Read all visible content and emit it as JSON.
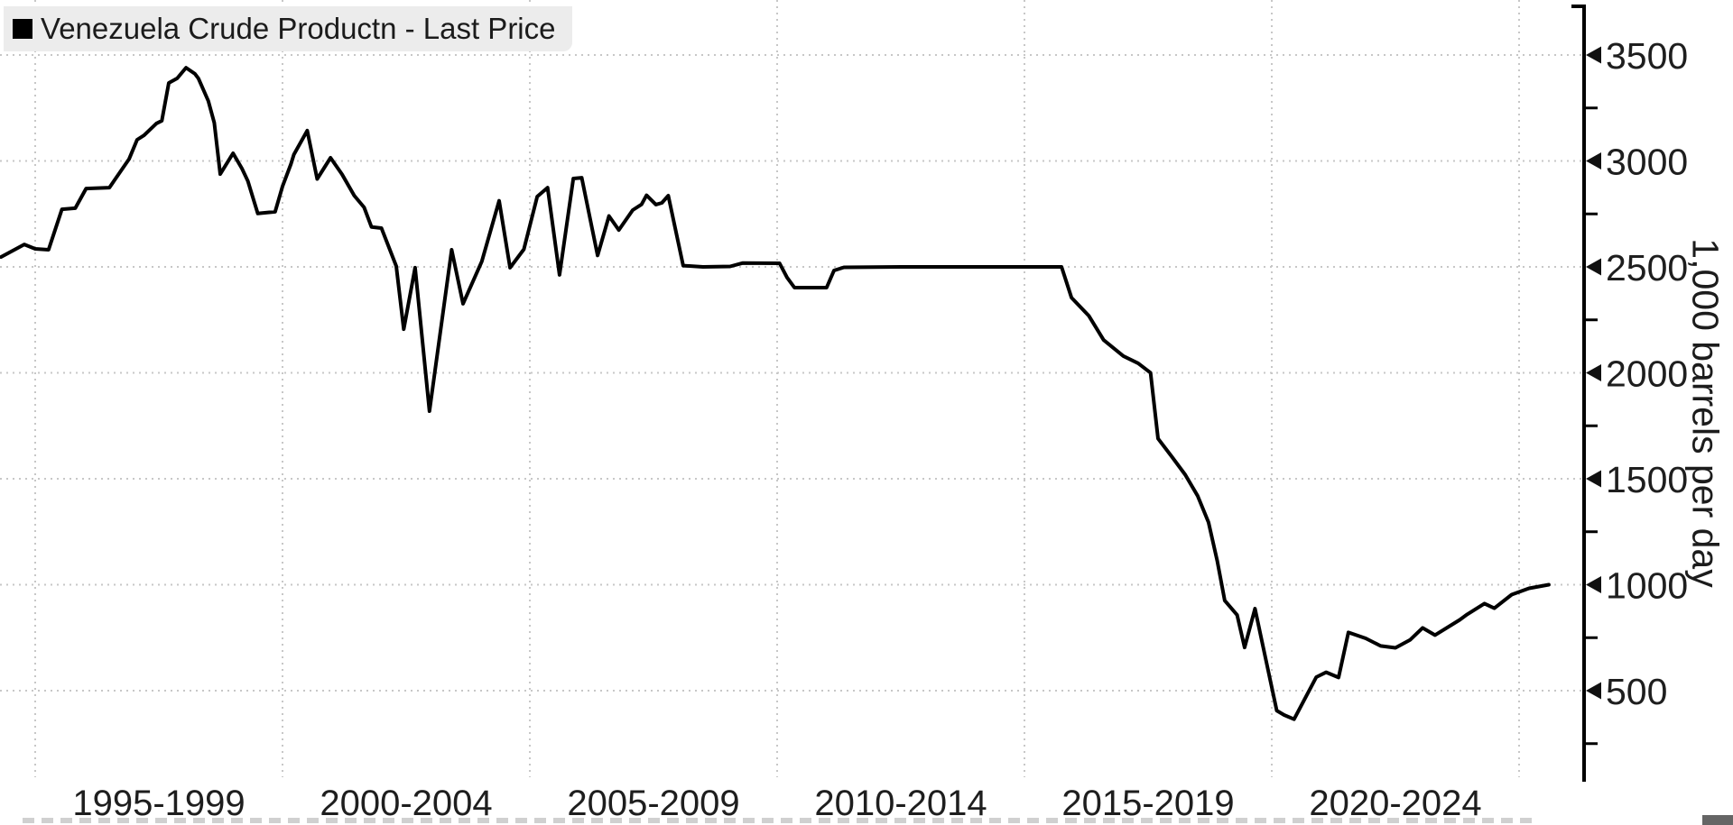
{
  "legend": {
    "label": "Venezuela Crude Productn - Last Price",
    "marker": "black-square"
  },
  "y_axis": {
    "title": "1,000 barrels per day",
    "tick_labels": [
      "3500",
      "3000",
      "2500",
      "2000",
      "1500",
      "1000",
      "500"
    ],
    "side": "right"
  },
  "x_axis": {
    "tick_labels": [
      "1995-1999",
      "2000-2004",
      "2005-2009",
      "2010-2014",
      "2015-2019",
      "2020-2024"
    ]
  },
  "colors": {
    "background": "#ffffff",
    "line": "#000000",
    "grid": "#c7c7c7",
    "legend_background": "#ececec",
    "text": "#1e1e1e"
  },
  "chart_data": {
    "type": "line",
    "series_name": "Venezuela Crude Productn - Last Price",
    "ylabel": "1,000 barrels per day",
    "x_unit": "year (fractional years = sub-annual observations)",
    "x_gridline_years": [
      1995,
      2000,
      2005,
      2010,
      2015,
      2020,
      2025
    ],
    "x_tick_labels": [
      "1995-1999",
      "2000-2004",
      "2005-2009",
      "2010-2014",
      "2015-2019",
      "2020-2024"
    ],
    "y_ticks": [
      3500,
      3000,
      2500,
      2000,
      1500,
      1000,
      500
    ],
    "y_minor_ticks": [
      3250,
      2750,
      2250,
      1750,
      1250,
      750,
      250
    ],
    "x_range": [
      1994.3,
      2026.3
    ],
    "ylim": [
      70,
      3740
    ],
    "grid": "dotted, both axes",
    "legend_position": "top-left",
    "points": [
      [
        1994.31,
        2547
      ],
      [
        1994.78,
        2606
      ],
      [
        1995.0,
        2585
      ],
      [
        1995.27,
        2581
      ],
      [
        1995.54,
        2772
      ],
      [
        1995.81,
        2777
      ],
      [
        1996.03,
        2870
      ],
      [
        1996.5,
        2874
      ],
      [
        1996.9,
        3010
      ],
      [
        1997.06,
        3100
      ],
      [
        1997.2,
        3121
      ],
      [
        1997.45,
        3177
      ],
      [
        1997.56,
        3190
      ],
      [
        1997.7,
        3368
      ],
      [
        1997.87,
        3390
      ],
      [
        1998.05,
        3440
      ],
      [
        1998.23,
        3411
      ],
      [
        1998.3,
        3390
      ],
      [
        1998.5,
        3283
      ],
      [
        1998.62,
        3180
      ],
      [
        1998.74,
        2938
      ],
      [
        1999.0,
        3036
      ],
      [
        1999.18,
        2964
      ],
      [
        1999.3,
        2905
      ],
      [
        1999.5,
        2752
      ],
      [
        1999.85,
        2760
      ],
      [
        2000.0,
        2880
      ],
      [
        2000.17,
        2985
      ],
      [
        2000.23,
        3030
      ],
      [
        2000.5,
        3143
      ],
      [
        2000.7,
        2915
      ],
      [
        2000.97,
        3015
      ],
      [
        2001.2,
        2938
      ],
      [
        2001.45,
        2836
      ],
      [
        2001.65,
        2781
      ],
      [
        2001.8,
        2688
      ],
      [
        2002.0,
        2683
      ],
      [
        2002.3,
        2504
      ],
      [
        2002.45,
        2206
      ],
      [
        2002.68,
        2496
      ],
      [
        2002.97,
        1819
      ],
      [
        2003.42,
        2581
      ],
      [
        2003.65,
        2326
      ],
      [
        2004.03,
        2526
      ],
      [
        2004.38,
        2812
      ],
      [
        2004.6,
        2496
      ],
      [
        2004.88,
        2583
      ],
      [
        2005.15,
        2832
      ],
      [
        2005.36,
        2874
      ],
      [
        2005.6,
        2462
      ],
      [
        2005.88,
        2917
      ],
      [
        2006.05,
        2921
      ],
      [
        2006.37,
        2554
      ],
      [
        2006.6,
        2740
      ],
      [
        2006.8,
        2674
      ],
      [
        2007.08,
        2768
      ],
      [
        2007.26,
        2795
      ],
      [
        2007.36,
        2838
      ],
      [
        2007.55,
        2794
      ],
      [
        2007.67,
        2802
      ],
      [
        2007.8,
        2836
      ],
      [
        2008.1,
        2506
      ],
      [
        2008.5,
        2500
      ],
      [
        2009.05,
        2502
      ],
      [
        2009.3,
        2518
      ],
      [
        2010.05,
        2517
      ],
      [
        2010.2,
        2450
      ],
      [
        2010.35,
        2402
      ],
      [
        2011.0,
        2402
      ],
      [
        2011.15,
        2483
      ],
      [
        2011.35,
        2498
      ],
      [
        2012.5,
        2500
      ],
      [
        2015.75,
        2500
      ],
      [
        2015.95,
        2355
      ],
      [
        2016.3,
        2270
      ],
      [
        2016.6,
        2155
      ],
      [
        2017.0,
        2079
      ],
      [
        2017.3,
        2045
      ],
      [
        2017.55,
        2000
      ],
      [
        2017.7,
        1690
      ],
      [
        2018.0,
        1598
      ],
      [
        2018.25,
        1519
      ],
      [
        2018.5,
        1420
      ],
      [
        2018.72,
        1295
      ],
      [
        2018.9,
        1110
      ],
      [
        2019.05,
        925
      ],
      [
        2019.3,
        857
      ],
      [
        2019.45,
        704
      ],
      [
        2019.66,
        887
      ],
      [
        2020.1,
        406
      ],
      [
        2020.25,
        385
      ],
      [
        2020.45,
        365
      ],
      [
        2020.9,
        564
      ],
      [
        2021.1,
        587
      ],
      [
        2021.35,
        562
      ],
      [
        2021.55,
        775
      ],
      [
        2021.9,
        747
      ],
      [
        2022.2,
        711
      ],
      [
        2022.5,
        702
      ],
      [
        2022.8,
        740
      ],
      [
        2023.05,
        796
      ],
      [
        2023.3,
        762
      ],
      [
        2023.8,
        834
      ],
      [
        2023.95,
        860
      ],
      [
        2024.3,
        911
      ],
      [
        2024.5,
        889
      ],
      [
        2024.85,
        953
      ],
      [
        2025.2,
        983
      ],
      [
        2025.6,
        1000
      ]
    ]
  }
}
